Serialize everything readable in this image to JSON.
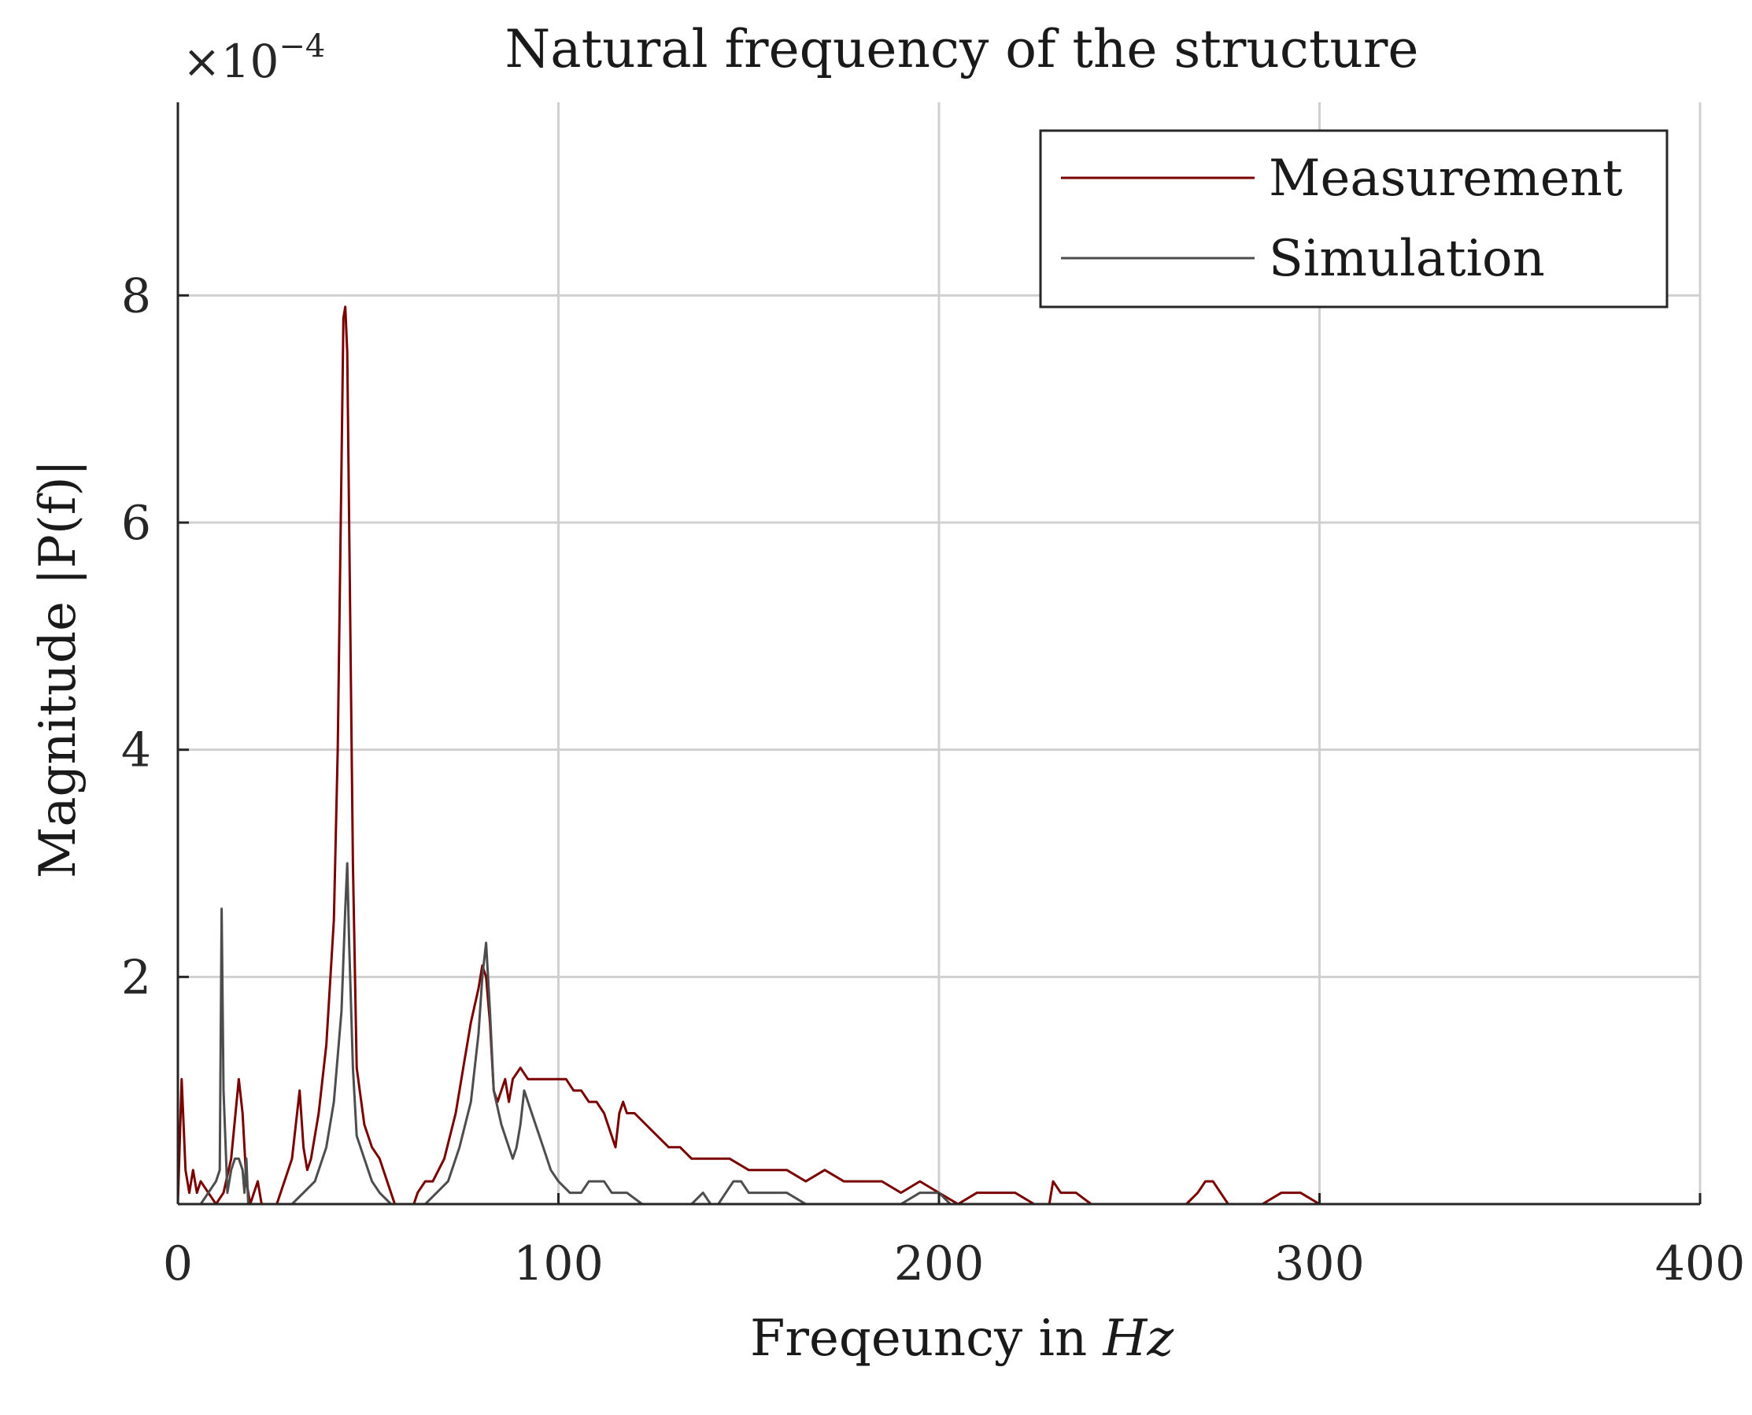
{
  "chart_data": {
    "type": "line",
    "title": "Natural frequency of the structure",
    "xlabel": "Freqeuncy in",
    "xlabel_unit": "Hz",
    "ylabel": "Magnitude |P(f)|",
    "y_exponent_prefix": "×10",
    "y_exponent": "−4",
    "xlim": [
      0,
      400
    ],
    "ylim": [
      0,
      0.00097
    ],
    "xticks": [
      0,
      100,
      200,
      300,
      400
    ],
    "xtick_labels": [
      "0",
      "100",
      "200",
      "300",
      "400"
    ],
    "yticks": [
      0.0002,
      0.0004,
      0.0006,
      0.0008
    ],
    "ytick_labels": [
      "2",
      "4",
      "6",
      "8"
    ],
    "grid": true,
    "legend_position": "top-right",
    "series": [
      {
        "name": "Measurement",
        "color": "#7a0000",
        "points": [
          [
            0,
            0
          ],
          [
            1,
            0.00011
          ],
          [
            2,
            3e-05
          ],
          [
            3,
            1e-05
          ],
          [
            4,
            3e-05
          ],
          [
            5,
            1e-05
          ],
          [
            6,
            2e-05
          ],
          [
            8,
            1e-05
          ],
          [
            10,
            0
          ],
          [
            12,
            1e-05
          ],
          [
            14,
            4e-05
          ],
          [
            16,
            0.00011
          ],
          [
            17,
            8e-05
          ],
          [
            18,
            2e-05
          ],
          [
            19,
            0
          ],
          [
            21,
            2e-05
          ],
          [
            22,
            0
          ],
          [
            26,
            0
          ],
          [
            28,
            2e-05
          ],
          [
            30,
            4e-05
          ],
          [
            32,
            0.0001
          ],
          [
            33,
            5e-05
          ],
          [
            34,
            3e-05
          ],
          [
            35,
            4e-05
          ],
          [
            37,
            8e-05
          ],
          [
            39,
            0.00014
          ],
          [
            41,
            0.00025
          ],
          [
            42,
            0.0004
          ],
          [
            43,
            0.00065
          ],
          [
            43.5,
            0.00078
          ],
          [
            44,
            0.00079
          ],
          [
            44.5,
            0.00075
          ],
          [
            45,
            0.0006
          ],
          [
            46,
            0.0003
          ],
          [
            47,
            0.00012
          ],
          [
            49,
            7e-05
          ],
          [
            51,
            5e-05
          ],
          [
            53,
            4e-05
          ],
          [
            55,
            2e-05
          ],
          [
            57,
            0
          ],
          [
            62,
            0
          ],
          [
            63,
            1e-05
          ],
          [
            65,
            2e-05
          ],
          [
            67,
            2e-05
          ],
          [
            70,
            4e-05
          ],
          [
            73,
            8e-05
          ],
          [
            75,
            0.00012
          ],
          [
            77,
            0.00016
          ],
          [
            79,
            0.00019
          ],
          [
            80,
            0.00021
          ],
          [
            81,
            0.0002
          ],
          [
            82,
            0.00016
          ],
          [
            83,
            0.0001
          ],
          [
            84,
            9e-05
          ],
          [
            85,
            0.0001
          ],
          [
            86,
            0.00011
          ],
          [
            87,
            9e-05
          ],
          [
            88,
            0.00011
          ],
          [
            90,
            0.00012
          ],
          [
            92,
            0.00011
          ],
          [
            94,
            0.00011
          ],
          [
            96,
            0.00011
          ],
          [
            98,
            0.00011
          ],
          [
            100,
            0.00011
          ],
          [
            102,
            0.00011
          ],
          [
            104,
            0.0001
          ],
          [
            106,
            0.0001
          ],
          [
            108,
            9e-05
          ],
          [
            110,
            9e-05
          ],
          [
            112,
            8e-05
          ],
          [
            114,
            6e-05
          ],
          [
            115,
            5e-05
          ],
          [
            116,
            8e-05
          ],
          [
            117,
            9e-05
          ],
          [
            118,
            8e-05
          ],
          [
            120,
            8e-05
          ],
          [
            123,
            7e-05
          ],
          [
            126,
            6e-05
          ],
          [
            129,
            5e-05
          ],
          [
            132,
            5e-05
          ],
          [
            135,
            4e-05
          ],
          [
            140,
            4e-05
          ],
          [
            145,
            4e-05
          ],
          [
            150,
            3e-05
          ],
          [
            155,
            3e-05
          ],
          [
            160,
            3e-05
          ],
          [
            165,
            2e-05
          ],
          [
            170,
            3e-05
          ],
          [
            175,
            2e-05
          ],
          [
            180,
            2e-05
          ],
          [
            185,
            2e-05
          ],
          [
            190,
            1e-05
          ],
          [
            195,
            2e-05
          ],
          [
            200,
            1e-05
          ],
          [
            205,
            0
          ],
          [
            210,
            1e-05
          ],
          [
            215,
            1e-05
          ],
          [
            220,
            1e-05
          ],
          [
            225,
            0
          ],
          [
            229,
            0
          ],
          [
            230,
            2e-05
          ],
          [
            232,
            1e-05
          ],
          [
            236,
            1e-05
          ],
          [
            240,
            0
          ],
          [
            245,
            0
          ],
          [
            250,
            0
          ],
          [
            260,
            0
          ],
          [
            265,
            0
          ],
          [
            268,
            1e-05
          ],
          [
            270,
            2e-05
          ],
          [
            272,
            2e-05
          ],
          [
            274,
            1e-05
          ],
          [
            276,
            0
          ],
          [
            280,
            0
          ],
          [
            285,
            0
          ],
          [
            290,
            1e-05
          ],
          [
            295,
            1e-05
          ],
          [
            300,
            0
          ],
          [
            305,
            0
          ],
          [
            310,
            0
          ],
          [
            320,
            0
          ],
          [
            330,
            0
          ],
          [
            345,
            0
          ]
        ]
      },
      {
        "name": "Simulation",
        "color": "#4d4d4d",
        "points": [
          [
            0,
            0
          ],
          [
            4,
            0
          ],
          [
            6,
            0
          ],
          [
            8,
            1e-05
          ],
          [
            10,
            2e-05
          ],
          [
            11,
            3e-05
          ],
          [
            11.5,
            0.00026
          ],
          [
            12,
            0.0001
          ],
          [
            13,
            1e-05
          ],
          [
            14,
            3e-05
          ],
          [
            15,
            4e-05
          ],
          [
            16,
            4e-05
          ],
          [
            17,
            3e-05
          ],
          [
            17.5,
            1e-05
          ],
          [
            18,
            4e-05
          ],
          [
            18.5,
            0
          ],
          [
            20,
            0
          ],
          [
            30,
            0
          ],
          [
            33,
            1e-05
          ],
          [
            36,
            2e-05
          ],
          [
            39,
            5e-05
          ],
          [
            41,
            9e-05
          ],
          [
            43,
            0.00017
          ],
          [
            44,
            0.00026
          ],
          [
            44.5,
            0.0003
          ],
          [
            45,
            0.00023
          ],
          [
            46,
            0.00012
          ],
          [
            47,
            6e-05
          ],
          [
            49,
            4e-05
          ],
          [
            51,
            2e-05
          ],
          [
            53,
            1e-05
          ],
          [
            56,
            0
          ],
          [
            62,
            0
          ],
          [
            65,
            0
          ],
          [
            68,
            1e-05
          ],
          [
            71,
            2e-05
          ],
          [
            74,
            5e-05
          ],
          [
            77,
            9e-05
          ],
          [
            79,
            0.00015
          ],
          [
            80,
            0.0002
          ],
          [
            81,
            0.00023
          ],
          [
            82,
            0.00017
          ],
          [
            83,
            0.0001
          ],
          [
            85,
            7e-05
          ],
          [
            87,
            5e-05
          ],
          [
            88,
            4e-05
          ],
          [
            89,
            5e-05
          ],
          [
            90,
            7e-05
          ],
          [
            91,
            0.0001
          ],
          [
            92,
            9e-05
          ],
          [
            94,
            7e-05
          ],
          [
            96,
            5e-05
          ],
          [
            98,
            3e-05
          ],
          [
            100,
            2e-05
          ],
          [
            103,
            1e-05
          ],
          [
            106,
            1e-05
          ],
          [
            108,
            2e-05
          ],
          [
            110,
            2e-05
          ],
          [
            112,
            2e-05
          ],
          [
            114,
            1e-05
          ],
          [
            118,
            1e-05
          ],
          [
            122,
            0
          ],
          [
            126,
            0
          ],
          [
            130,
            0
          ],
          [
            135,
            0
          ],
          [
            138,
            1e-05
          ],
          [
            140,
            0
          ],
          [
            142,
            0
          ],
          [
            144,
            1e-05
          ],
          [
            146,
            2e-05
          ],
          [
            148,
            2e-05
          ],
          [
            150,
            1e-05
          ],
          [
            155,
            1e-05
          ],
          [
            160,
            1e-05
          ],
          [
            165,
            0
          ],
          [
            170,
            0
          ],
          [
            180,
            0
          ],
          [
            190,
            0
          ],
          [
            195,
            1e-05
          ],
          [
            198,
            1e-05
          ],
          [
            200,
            1e-05
          ],
          [
            203,
            0
          ],
          [
            206,
            0
          ],
          [
            210,
            0
          ]
        ]
      }
    ]
  }
}
